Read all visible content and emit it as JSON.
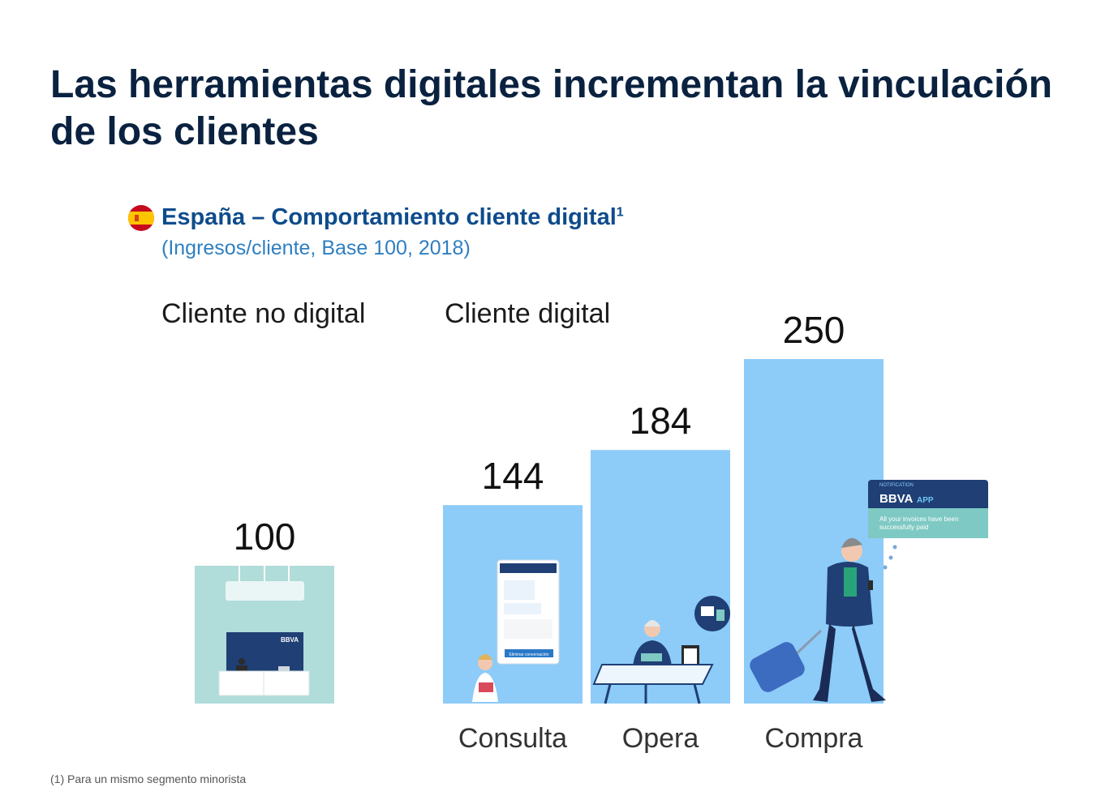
{
  "title_lines": [
    "Las herramientas digitales incrementan la vinculación",
    "de los clientes"
  ],
  "subtitle": {
    "main": "España – Comportamiento cliente digital",
    "superscript": "1",
    "sub": "(Ingresos/cliente, Base 100, 2018)",
    "flag_icon": "spain-flag-icon"
  },
  "group_labels": {
    "non_digital": "Cliente no digital",
    "digital": "Cliente digital"
  },
  "chart_data": {
    "type": "bar",
    "categories": [
      "",
      "Consulta",
      "Opera",
      "Compra"
    ],
    "values": [
      100,
      144,
      184,
      250
    ],
    "value_labels": [
      "100",
      "144",
      "184",
      "250"
    ],
    "bar_colors": [
      "#b0dcd9",
      "#8dcbf8",
      "#8dcbf8",
      "#8dcbf8"
    ],
    "ylim": [
      0,
      250
    ],
    "grid": false,
    "legend": "none"
  },
  "illustrations": {
    "branch_sign": "BBVA",
    "notification": {
      "tag": "NOTIFICATION",
      "brand": "BBVA",
      "app": "APP",
      "message_line1": "All your invoices have been",
      "message_line2": "successfully paid"
    },
    "phone_button": "Eliminar conversación",
    "colors": {
      "navy": "#1f3f75",
      "teal": "#7ec9c3",
      "skin": "#f2c9b0"
    }
  },
  "footnote": "(1) Para un mismo segmento minorista"
}
